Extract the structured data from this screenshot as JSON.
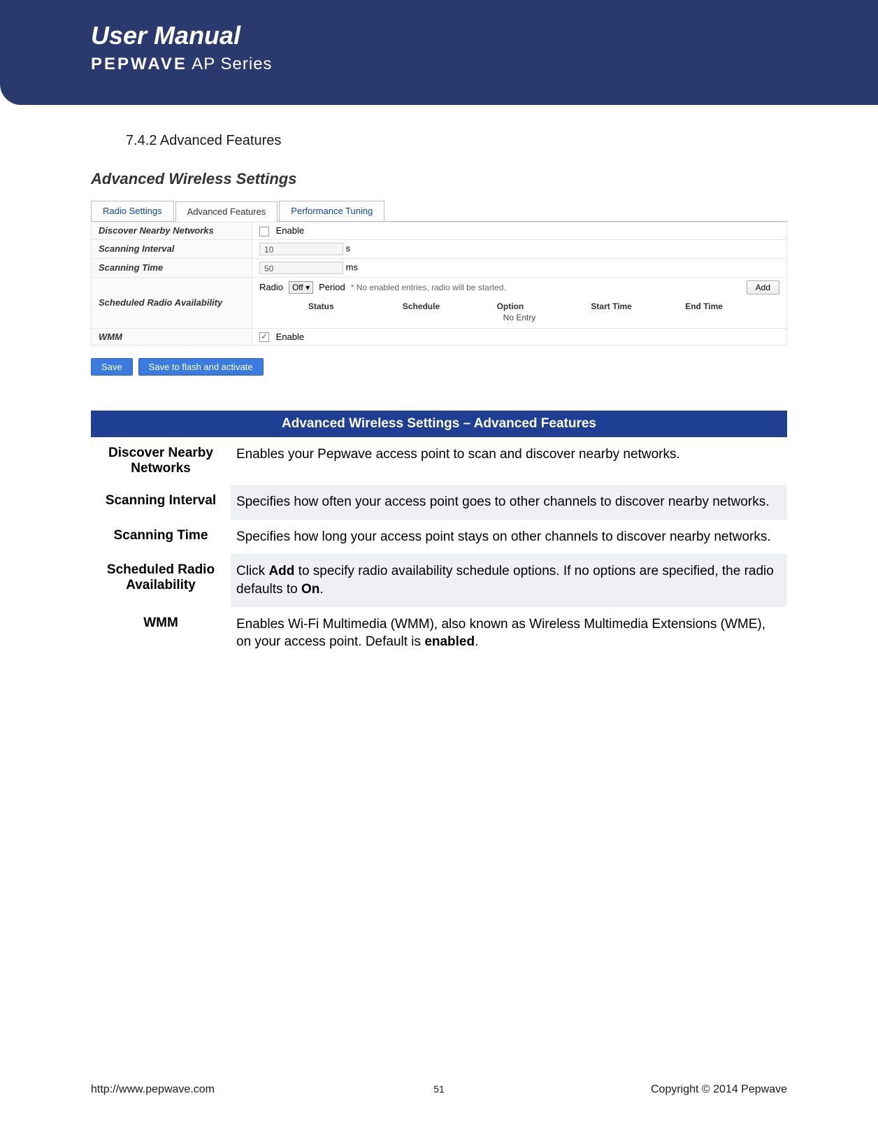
{
  "header": {
    "title": "User Manual",
    "brand": "PEPWAVE",
    "series": "AP Series",
    "bg_color": "#2a3a6e"
  },
  "section": {
    "number_title": "7.4.2 Advanced Features"
  },
  "screenshot": {
    "title": "Advanced Wireless Settings",
    "tabs": {
      "radio": "Radio Settings",
      "advanced": "Advanced Features",
      "performance": "Performance Tuning"
    },
    "rows": {
      "discover": {
        "label": "Discover Nearby Networks",
        "enable_text": "Enable",
        "checked": false
      },
      "interval": {
        "label": "Scanning Interval",
        "value": "10",
        "unit": "s"
      },
      "time": {
        "label": "Scanning Time",
        "value": "50",
        "unit": "ms"
      },
      "sched": {
        "label": "Scheduled Radio Availability",
        "radio_label": "Radio",
        "option": "Off",
        "period_label": "Period",
        "note": "* No enabled entries, radio will be started.",
        "add": "Add",
        "columns": {
          "status": "Status",
          "schedule": "Schedule",
          "option": "Option",
          "start": "Start Time",
          "end": "End Time"
        },
        "no_entry": "No Entry"
      },
      "wmm": {
        "label": "WMM",
        "enable_text": "Enable",
        "checked": true
      }
    },
    "buttons": {
      "save": "Save",
      "flash": "Save to flash and activate"
    }
  },
  "desc_table": {
    "header": "Advanced Wireless Settings – Advanced Features",
    "rows": [
      {
        "key": "Discover Nearby Networks",
        "val": "Enables your Pepwave access point to scan and discover nearby networks."
      },
      {
        "key": "Scanning Interval",
        "val": "Specifies how often your access point goes to other channels to discover nearby networks."
      },
      {
        "key": "Scanning Time",
        "val": "Specifies how long your access point stays on other channels to discover nearby networks."
      },
      {
        "key": "Scheduled Radio Availability",
        "val": "Click <b>Add</b> to specify radio availability schedule options. If no options are specified, the radio defaults to <b>On</b>."
      },
      {
        "key": "WMM",
        "val": "Enables Wi-Fi Multimedia (WMM), also known as Wireless Multimedia Extensions (WME), on your access point. Default is <b>enabled</b>."
      }
    ]
  },
  "footer": {
    "url": "http://www.pepwave.com",
    "page": "51",
    "copyright": "Copyright  ©  2014  Pepwave"
  }
}
